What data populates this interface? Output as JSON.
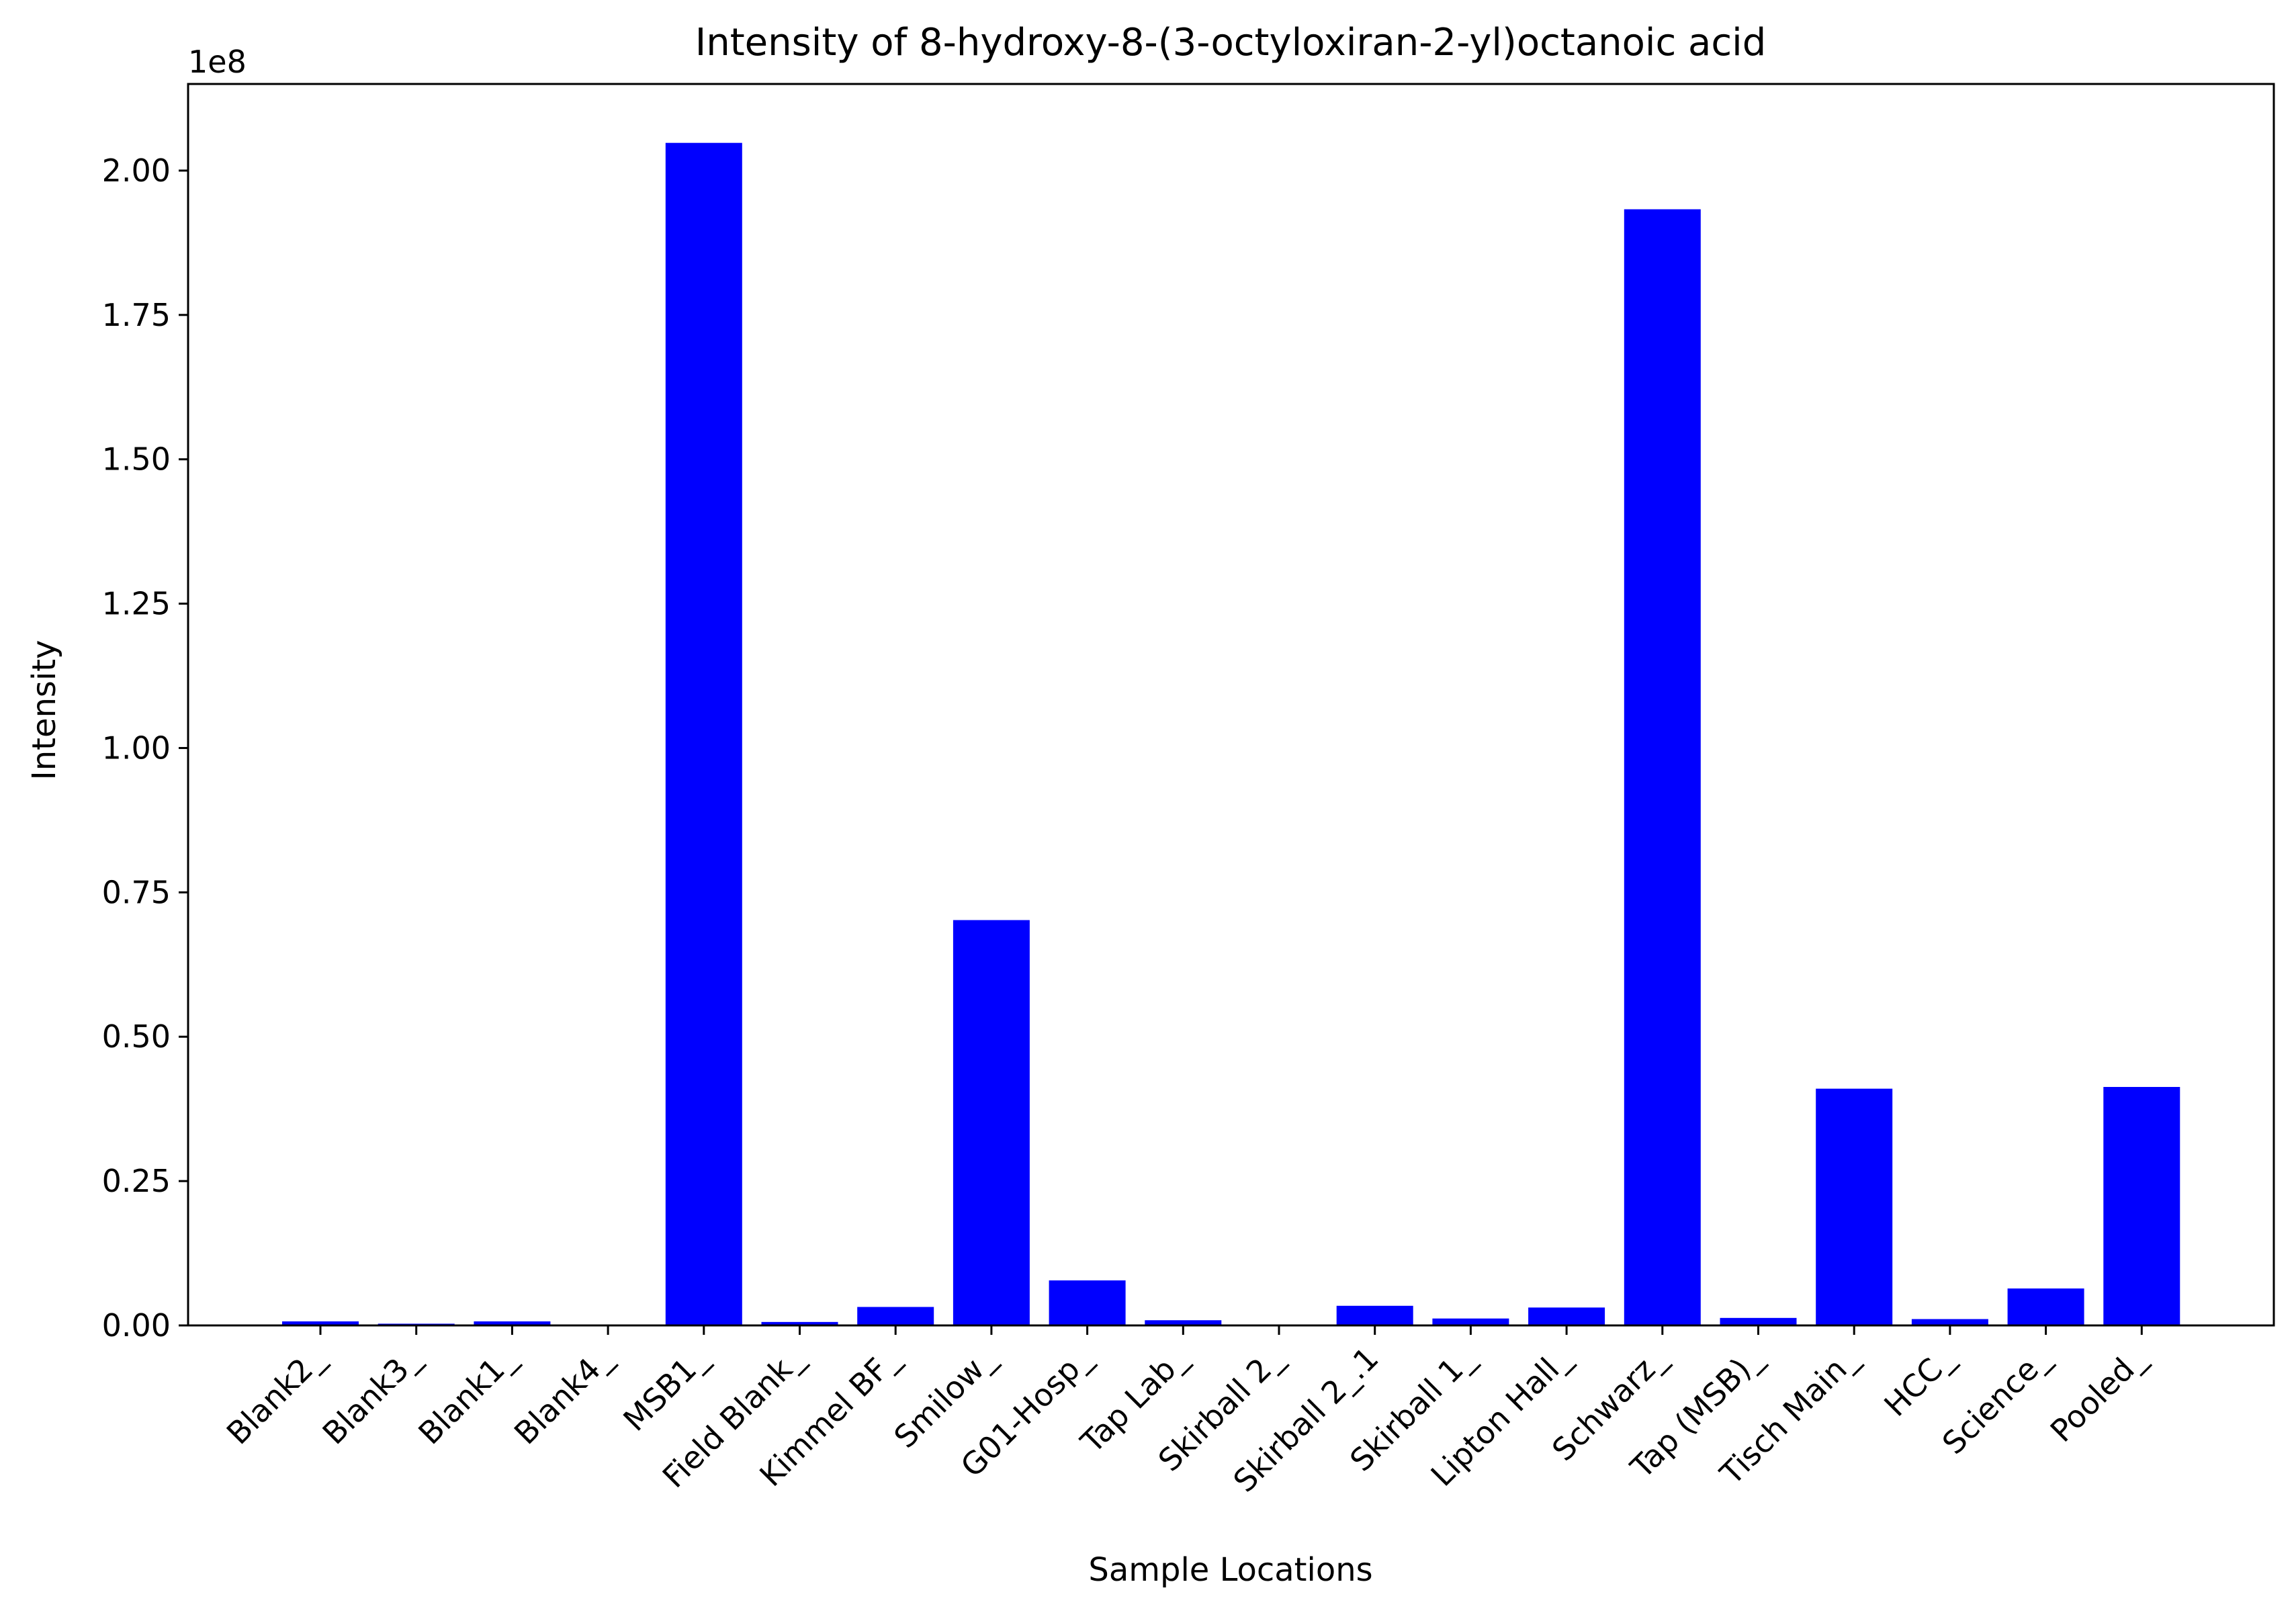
{
  "chart_data": {
    "type": "bar",
    "title": "Intensity of 8-hydroxy-8-(3-octyloxiran-2-yl)octanoic acid",
    "xlabel": "Sample Locations",
    "ylabel": "Intensity",
    "offset_label": "1e8",
    "ylim": [
      0,
      2.15
    ],
    "yticks": [
      "0.00",
      "0.25",
      "0.50",
      "0.75",
      "1.00",
      "1.25",
      "1.50",
      "1.75",
      "2.00"
    ],
    "bar_color": "#0000ff",
    "grid": false,
    "categories": [
      "Blank2_",
      "Blank3_",
      "Blank1_",
      "Blank4_",
      "MSB1_",
      "Field Blank_",
      "Kimmel BF_",
      "Smilow_",
      "G01-Hosp_",
      "Tap Lab_",
      "Skirball 2_",
      "Skirball 2_.1",
      "Skirball 1_",
      "Lipton Hall_",
      "Schwarz_",
      "Tap (MSB)_",
      "Tisch Main_",
      "HCC_",
      "Science_",
      "Pooled_"
    ],
    "values": [
      0.007,
      0.003,
      0.007,
      0.001,
      2.048,
      0.006,
      0.032,
      0.702,
      0.078,
      0.009,
      0.001,
      0.034,
      0.012,
      0.031,
      1.933,
      0.013,
      0.41,
      0.011,
      0.064,
      0.413
    ]
  }
}
